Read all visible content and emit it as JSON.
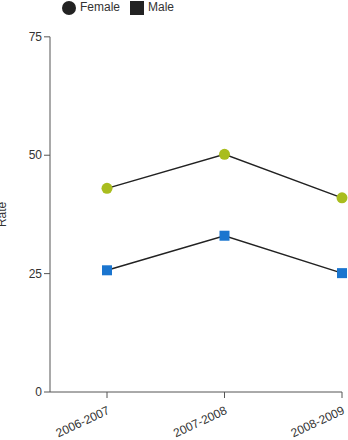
{
  "chart_data": {
    "type": "line",
    "categories": [
      "2006-2007",
      "2007-2008",
      "2008-2009"
    ],
    "series": [
      {
        "name": "Male",
        "color": "#1a75cf",
        "marker": "square",
        "values": [
          25.7,
          33,
          25.1
        ]
      },
      {
        "name": "Female",
        "color": "#a9bd1e",
        "marker": "circle",
        "values": [
          43,
          50.2,
          41
        ]
      }
    ],
    "y_label": "Rate",
    "ylim": [
      0,
      75
    ],
    "yticks": [
      0,
      25,
      50,
      75
    ],
    "grid": false,
    "legend": "top left"
  }
}
